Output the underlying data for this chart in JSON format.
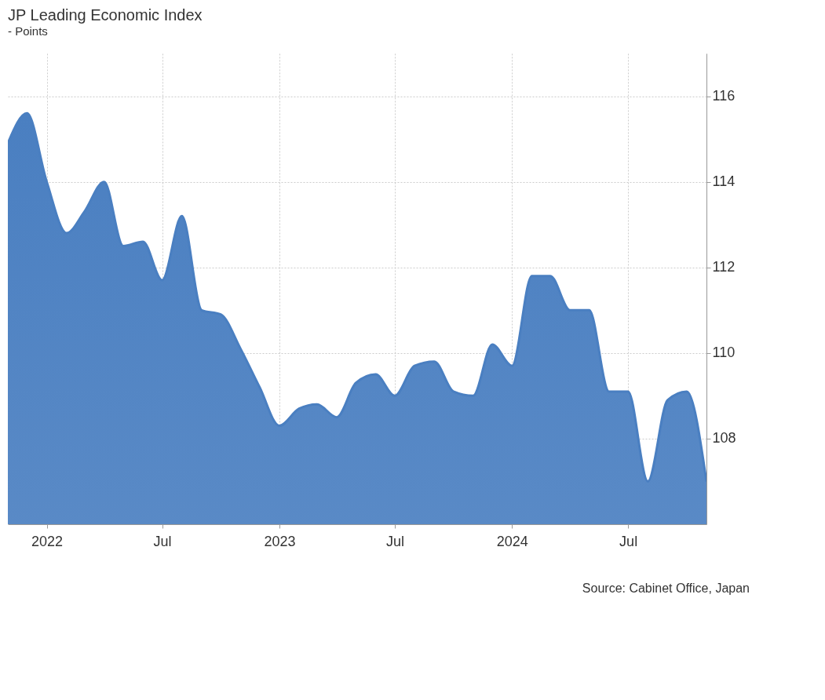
{
  "chart_data": {
    "type": "area",
    "title": "JP Leading Economic Index",
    "subtitle": "- Points",
    "x": [
      "2021-11",
      "2021-12",
      "2022-01",
      "2022-02",
      "2022-03",
      "2022-04",
      "2022-05",
      "2022-06",
      "2022-07",
      "2022-08",
      "2022-09",
      "2022-10",
      "2022-11",
      "2022-12",
      "2023-01",
      "2023-02",
      "2023-03",
      "2023-04",
      "2023-05",
      "2023-06",
      "2023-07",
      "2023-08",
      "2023-09",
      "2023-10",
      "2023-11",
      "2023-12",
      "2024-01",
      "2024-02",
      "2024-03",
      "2024-04",
      "2024-05",
      "2024-06",
      "2024-07",
      "2024-08",
      "2024-09",
      "2024-10",
      "2024-11"
    ],
    "series": [
      {
        "color": "#4a7fc1",
        "values": [
          114.9,
          115.6,
          114.0,
          112.8,
          113.3,
          114.0,
          112.5,
          112.6,
          111.7,
          113.2,
          111.0,
          110.9,
          110.1,
          109.2,
          108.3,
          108.7,
          108.8,
          108.5,
          109.3,
          109.5,
          109.0,
          109.7,
          109.8,
          109.1,
          109.0,
          110.2,
          109.7,
          111.8,
          111.8,
          111.0,
          111.0,
          109.1,
          109.1,
          107.0,
          108.9,
          109.1,
          107.0
        ]
      }
    ],
    "xlim": [
      "2021-11",
      "2024-11"
    ],
    "xticks": [
      {
        "value": "2022-01",
        "label": "2022"
      },
      {
        "value": "2022-07",
        "label": "Jul"
      },
      {
        "value": "2023-01",
        "label": "2023"
      },
      {
        "value": "2023-07",
        "label": "Jul"
      },
      {
        "value": "2024-01",
        "label": "2024"
      },
      {
        "value": "2024-07",
        "label": "Jul"
      }
    ],
    "ylim": [
      106,
      117
    ],
    "yticks": [
      108,
      110,
      112,
      114,
      116
    ],
    "grid": true,
    "annotations": [
      "Source: Cabinet Office, Japan"
    ]
  }
}
